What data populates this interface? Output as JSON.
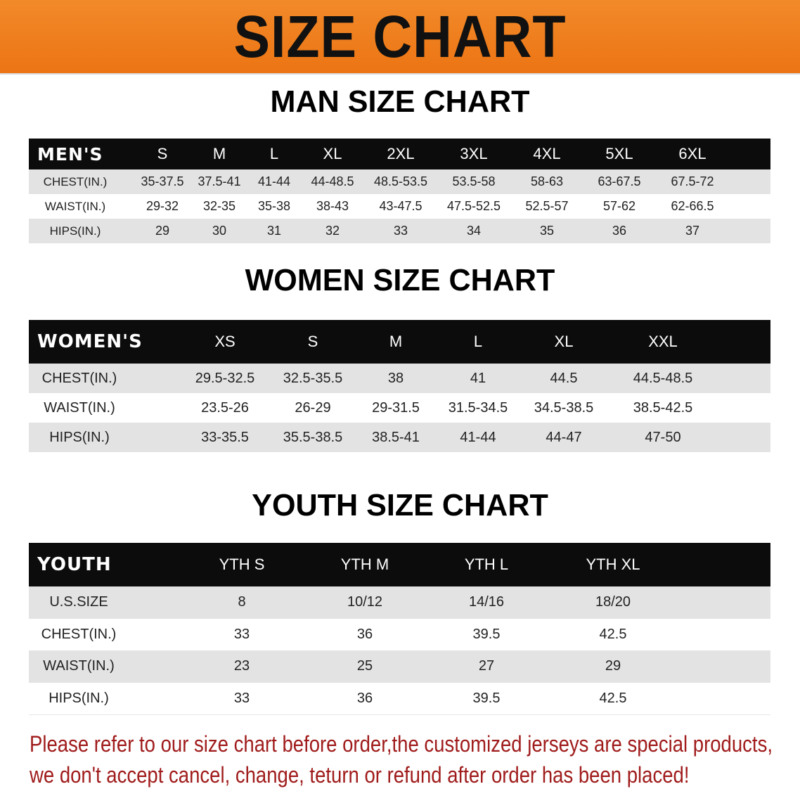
{
  "banner_title": "SIZE CHART",
  "men": {
    "title": "MAN SIZE CHART",
    "header": [
      "MEN'S",
      "S",
      "M",
      "L",
      "XL",
      "2XL",
      "3XL",
      "4XL",
      "5XL",
      "6XL"
    ],
    "rows": [
      [
        "CHEST(IN.)",
        "35-37.5",
        "37.5-41",
        "41-44",
        "44-48.5",
        "48.5-53.5",
        "53.5-58",
        "58-63",
        "63-67.5",
        "67.5-72"
      ],
      [
        "WAIST(IN.)",
        "29-32",
        "32-35",
        "35-38",
        "38-43",
        "43-47.5",
        "47.5-52.5",
        "52.5-57",
        "57-62",
        "62-66.5"
      ],
      [
        "HIPS(IN.)",
        "29",
        "30",
        "31",
        "32",
        "33",
        "34",
        "35",
        "36",
        "37"
      ]
    ]
  },
  "women": {
    "title": "WOMEN SIZE CHART",
    "header": [
      "WOMEN'S",
      "XS",
      "S",
      "M",
      "L",
      "XL",
      "XXL"
    ],
    "rows": [
      [
        "CHEST(IN.)",
        "29.5-32.5",
        "32.5-35.5",
        "38",
        "41",
        "44.5",
        "44.5-48.5"
      ],
      [
        "WAIST(IN.)",
        "23.5-26",
        "26-29",
        "29-31.5",
        "31.5-34.5",
        "34.5-38.5",
        "38.5-42.5"
      ],
      [
        "HIPS(IN.)",
        "33-35.5",
        "35.5-38.5",
        "38.5-41",
        "41-44",
        "44-47",
        "47-50"
      ]
    ]
  },
  "youth": {
    "title": "YOUTH SIZE CHART",
    "header": [
      "YOUTH",
      "YTH S",
      "YTH M",
      "YTH L",
      "YTH XL"
    ],
    "rows": [
      [
        "U.S.SIZE",
        "8",
        "10/12",
        "14/16",
        "18/20"
      ],
      [
        "CHEST(IN.)",
        "33",
        "36",
        "39.5",
        "42.5"
      ],
      [
        "WAIST(IN.)",
        "23",
        "25",
        "27",
        "29"
      ],
      [
        "HIPS(IN.)",
        "33",
        "36",
        "39.5",
        "42.5"
      ]
    ]
  },
  "note": {
    "line1": "Please refer to our size chart before order,the customized jerseys are special products,",
    "line2": "we don't accept cancel, change, teturn or refund after order has been placed!"
  },
  "colors": {
    "banner": "#ec7413",
    "header_row": "#0c0c0c",
    "stripe": "#e3e3e3",
    "note": "#a01c1c"
  }
}
